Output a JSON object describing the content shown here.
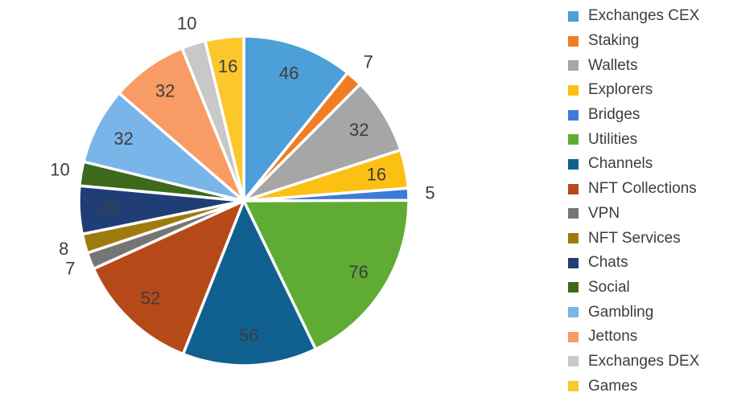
{
  "chart_data": {
    "type": "pie",
    "title": "",
    "legend_position": "right",
    "layout": {
      "start_angle_deg": 0,
      "direction": "clockwise",
      "separator_color": "#ffffff",
      "label_color": "#3d3d3d",
      "inside_label_min_value": 16,
      "inside_label_radius_frac": 0.82,
      "outside_label_radius_frac": 1.13
    },
    "slices": [
      {
        "label": "Exchanges CEX",
        "value": 46,
        "color": "#4c9fd8"
      },
      {
        "label": "Staking",
        "value": 7,
        "color": "#f17d23"
      },
      {
        "label": "Wallets",
        "value": 32,
        "color": "#a6a6a6"
      },
      {
        "label": "Explorers",
        "value": 16,
        "color": "#fcc013"
      },
      {
        "label": "Bridges",
        "value": 5,
        "color": "#3c7cd8"
      },
      {
        "label": "Utilities",
        "value": 76,
        "color": "#5fab34"
      },
      {
        "label": "Channels",
        "value": 56,
        "color": "#10618f"
      },
      {
        "label": "NFT Collections",
        "value": 52,
        "color": "#b54a18"
      },
      {
        "label": "VPN",
        "value": 7,
        "color": "#757575"
      },
      {
        "label": "NFT Services",
        "value": 8,
        "color": "#9e7b0d"
      },
      {
        "label": "Chats",
        "value": 20,
        "color": "#1f3e75"
      },
      {
        "label": "Social",
        "value": 10,
        "color": "#3c691c"
      },
      {
        "label": "Gambling",
        "value": 32,
        "color": "#7ab5e9"
      },
      {
        "label": "Jettons",
        "value": 32,
        "color": "#f99b64"
      },
      {
        "label": "Exchanges DEX",
        "value": 10,
        "color": "#c8c8c8"
      },
      {
        "label": "Games",
        "value": 16,
        "color": "#fcc72b"
      }
    ]
  }
}
